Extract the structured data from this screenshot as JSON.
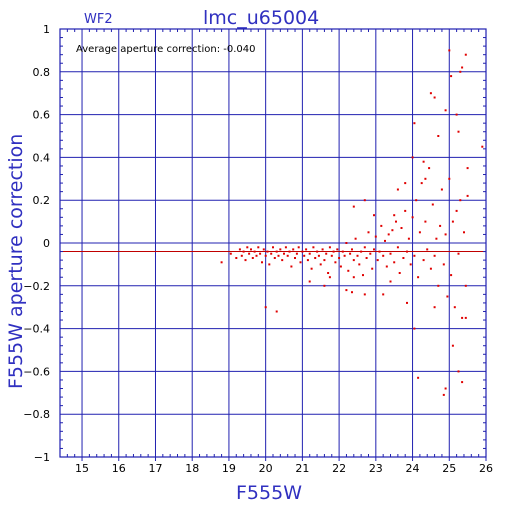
{
  "chart_data": {
    "type": "scatter",
    "title": "lmc_u65004",
    "chip": "WF2",
    "xlabel": "F555W",
    "ylabel": "F555W aperture correction",
    "annotation": "Average aperture correction:  -0.040",
    "xlim": [
      14.4,
      26
    ],
    "ylim": [
      -1,
      1
    ],
    "xticks": [
      15,
      16,
      17,
      18,
      19,
      20,
      21,
      22,
      23,
      24,
      25,
      26
    ],
    "yticks": [
      -1,
      -0.8,
      -0.6,
      -0.4,
      -0.2,
      0,
      0.2,
      0.4,
      0.6,
      0.8,
      1
    ],
    "xtick_labels": [
      "15",
      "16",
      "17",
      "18",
      "19",
      "20",
      "21",
      "22",
      "23",
      "24",
      "25",
      "26"
    ],
    "ytick_labels": [
      "−1",
      "−0.8",
      "−0.6",
      "−0.4",
      "−0.2",
      "0",
      "0.2",
      "0.4",
      "0.6",
      "0.8",
      "1"
    ],
    "grid": true,
    "average": -0.04,
    "colors": {
      "points": "#e00000",
      "average_line": "#c00000",
      "frame": "#2020b0",
      "labels": "#3030c0"
    },
    "points": [
      [
        18.8,
        -0.09
      ],
      [
        19.05,
        -0.05
      ],
      [
        19.2,
        -0.07
      ],
      [
        19.3,
        -0.03
      ],
      [
        19.35,
        -0.06
      ],
      [
        19.4,
        -0.04
      ],
      [
        19.45,
        -0.08
      ],
      [
        19.5,
        -0.02
      ],
      [
        19.55,
        -0.05
      ],
      [
        19.6,
        -0.03
      ],
      [
        19.65,
        -0.07
      ],
      [
        19.7,
        -0.04
      ],
      [
        19.75,
        -0.06
      ],
      [
        19.8,
        -0.02
      ],
      [
        19.85,
        -0.05
      ],
      [
        19.9,
        -0.09
      ],
      [
        19.95,
        -0.03
      ],
      [
        20.0,
        -0.06
      ],
      [
        20.05,
        -0.04
      ],
      [
        20.1,
        -0.1
      ],
      [
        20.15,
        -0.05
      ],
      [
        20.2,
        -0.02
      ],
      [
        20.25,
        -0.07
      ],
      [
        20.3,
        -0.04
      ],
      [
        20.35,
        -0.06
      ],
      [
        20.4,
        -0.03
      ],
      [
        20.45,
        -0.08
      ],
      [
        20.5,
        -0.05
      ],
      [
        20.55,
        -0.02
      ],
      [
        20.6,
        -0.06
      ],
      [
        20.65,
        -0.04
      ],
      [
        20.7,
        -0.11
      ],
      [
        20.75,
        -0.03
      ],
      [
        20.8,
        -0.07
      ],
      [
        20.85,
        -0.05
      ],
      [
        20.9,
        -0.02
      ],
      [
        20.95,
        -0.09
      ],
      [
        21.0,
        -0.04
      ],
      [
        21.05,
        -0.06
      ],
      [
        21.1,
        -0.03
      ],
      [
        21.15,
        -0.08
      ],
      [
        21.2,
        -0.05
      ],
      [
        21.25,
        -0.12
      ],
      [
        21.3,
        -0.02
      ],
      [
        21.35,
        -0.07
      ],
      [
        21.4,
        -0.04
      ],
      [
        21.45,
        -0.06
      ],
      [
        21.5,
        -0.1
      ],
      [
        21.55,
        -0.03
      ],
      [
        21.6,
        -0.08
      ],
      [
        21.65,
        -0.05
      ],
      [
        21.7,
        -0.14
      ],
      [
        21.75,
        -0.02
      ],
      [
        21.8,
        -0.06
      ],
      [
        21.85,
        -0.04
      ],
      [
        21.9,
        -0.09
      ],
      [
        21.95,
        -0.03
      ],
      [
        22.0,
        -0.07
      ],
      [
        22.05,
        -0.11
      ],
      [
        22.1,
        -0.04
      ],
      [
        22.15,
        -0.06
      ],
      [
        22.2,
        0.0
      ],
      [
        22.25,
        -0.13
      ],
      [
        22.3,
        -0.05
      ],
      [
        22.35,
        -0.03
      ],
      [
        22.4,
        -0.08
      ],
      [
        22.45,
        0.02
      ],
      [
        22.5,
        -0.06
      ],
      [
        22.55,
        -0.1
      ],
      [
        22.6,
        -0.04
      ],
      [
        22.65,
        -0.15
      ],
      [
        22.7,
        -0.02
      ],
      [
        22.75,
        -0.07
      ],
      [
        22.8,
        0.05
      ],
      [
        22.85,
        -0.05
      ],
      [
        22.9,
        -0.12
      ],
      [
        22.95,
        -0.03
      ],
      [
        23.0,
        0.03
      ],
      [
        23.05,
        -0.08
      ],
      [
        23.1,
        -0.04
      ],
      [
        23.15,
        0.08
      ],
      [
        23.2,
        -0.06
      ],
      [
        23.25,
        0.01
      ],
      [
        23.3,
        -0.11
      ],
      [
        23.35,
        0.04
      ],
      [
        23.4,
        -0.05
      ],
      [
        23.45,
        0.06
      ],
      [
        23.5,
        -0.09
      ],
      [
        23.55,
        0.1
      ],
      [
        23.6,
        -0.02
      ],
      [
        23.65,
        -0.14
      ],
      [
        23.7,
        0.07
      ],
      [
        23.75,
        -0.07
      ],
      [
        23.8,
        0.15
      ],
      [
        23.85,
        -0.04
      ],
      [
        23.9,
        0.02
      ],
      [
        23.95,
        -0.1
      ],
      [
        24.0,
        0.12
      ],
      [
        24.05,
        -0.06
      ],
      [
        24.1,
        0.2
      ],
      [
        24.15,
        -0.16
      ],
      [
        24.2,
        0.05
      ],
      [
        24.25,
        0.28
      ],
      [
        24.3,
        -0.08
      ],
      [
        24.35,
        0.1
      ],
      [
        24.4,
        -0.03
      ],
      [
        24.45,
        0.35
      ],
      [
        24.5,
        -0.12
      ],
      [
        24.55,
        0.18
      ],
      [
        24.6,
        -0.06
      ],
      [
        24.65,
        0.02
      ],
      [
        24.7,
        -0.2
      ],
      [
        24.75,
        0.08
      ],
      [
        24.8,
        0.25
      ],
      [
        24.85,
        -0.1
      ],
      [
        24.9,
        0.04
      ],
      [
        24.95,
        -0.25
      ],
      [
        25.0,
        0.3
      ],
      [
        25.05,
        -0.15
      ],
      [
        25.1,
        0.1
      ],
      [
        25.15,
        -0.3
      ],
      [
        25.2,
        0.15
      ],
      [
        25.25,
        -0.05
      ],
      [
        25.3,
        0.2
      ],
      [
        25.35,
        -0.35
      ],
      [
        25.4,
        0.05
      ],
      [
        25.45,
        -0.2
      ],
      [
        25.5,
        0.22
      ],
      [
        20.0,
        -0.3
      ],
      [
        20.3,
        -0.32
      ],
      [
        21.2,
        -0.18
      ],
      [
        21.6,
        -0.2
      ],
      [
        21.75,
        -0.16
      ],
      [
        22.2,
        -0.22
      ],
      [
        22.35,
        -0.23
      ],
      [
        22.4,
        -0.16
      ],
      [
        22.7,
        -0.24
      ],
      [
        23.2,
        -0.24
      ],
      [
        23.4,
        -0.18
      ],
      [
        23.85,
        -0.28
      ],
      [
        24.05,
        -0.4
      ],
      [
        24.15,
        -0.63
      ],
      [
        24.6,
        -0.3
      ],
      [
        24.85,
        -0.71
      ],
      [
        24.9,
        -0.68
      ],
      [
        25.1,
        -0.48
      ],
      [
        25.25,
        -0.6
      ],
      [
        25.35,
        -0.65
      ],
      [
        25.45,
        -0.35
      ],
      [
        22.4,
        0.17
      ],
      [
        22.7,
        0.2
      ],
      [
        22.95,
        0.13
      ],
      [
        23.5,
        0.13
      ],
      [
        23.6,
        0.25
      ],
      [
        23.8,
        0.28
      ],
      [
        24.0,
        0.4
      ],
      [
        24.05,
        0.56
      ],
      [
        24.3,
        0.38
      ],
      [
        24.35,
        0.3
      ],
      [
        24.5,
        0.7
      ],
      [
        24.6,
        0.68
      ],
      [
        24.7,
        0.5
      ],
      [
        24.9,
        0.62
      ],
      [
        25.0,
        0.9
      ],
      [
        25.05,
        0.78
      ],
      [
        25.2,
        0.6
      ],
      [
        25.25,
        0.52
      ],
      [
        25.3,
        0.8
      ],
      [
        25.35,
        0.82
      ],
      [
        25.45,
        0.88
      ],
      [
        25.5,
        0.35
      ],
      [
        25.9,
        0.45
      ]
    ]
  }
}
